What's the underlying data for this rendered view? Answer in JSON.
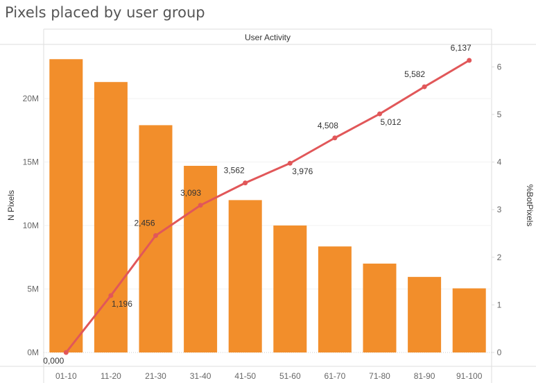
{
  "title": "Pixels placed by user group",
  "chart_data": {
    "type": "bar+line",
    "title": "Pixels placed by user group",
    "column_header": "User Activity",
    "categories": [
      "01-10",
      "11-20",
      "21-30",
      "31-40",
      "41-50",
      "51-60",
      "61-70",
      "71-80",
      "81-90",
      "91-100"
    ],
    "series": [
      {
        "name": "N Pixels",
        "type": "bar",
        "axis": "left",
        "color": "#f28e2b",
        "values": [
          23100000,
          21300000,
          17900000,
          14700000,
          12000000,
          10000000,
          8350000,
          7000000,
          5950000,
          5050000
        ]
      },
      {
        "name": "%BotPixels",
        "type": "line",
        "axis": "right",
        "color": "#e15759",
        "values": [
          0.0,
          1.196,
          2.456,
          3.093,
          3.562,
          3.976,
          4.508,
          5.012,
          5.582,
          6.137
        ],
        "labels": [
          "0,000",
          "1,196",
          "2,456",
          "3,093",
          "3,562",
          "3,976",
          "4,508",
          "5,012",
          "5,582",
          "6,137"
        ]
      }
    ],
    "ylabel_left": "N Pixels",
    "ylabel_right": "%BotPixels",
    "ylim_left": [
      0,
      26000000
    ],
    "ylim_right": [
      0,
      7.0
    ],
    "yticks_left": [
      0,
      5000000,
      10000000,
      15000000,
      20000000
    ],
    "yticks_left_labels": [
      "0M",
      "5M",
      "10M",
      "15M",
      "20M"
    ],
    "yticks_right": [
      0,
      1,
      2,
      3,
      4,
      5,
      6
    ],
    "yticks_right_labels": [
      "0",
      "1",
      "2",
      "3",
      "4",
      "5",
      "6"
    ],
    "grid": true
  }
}
